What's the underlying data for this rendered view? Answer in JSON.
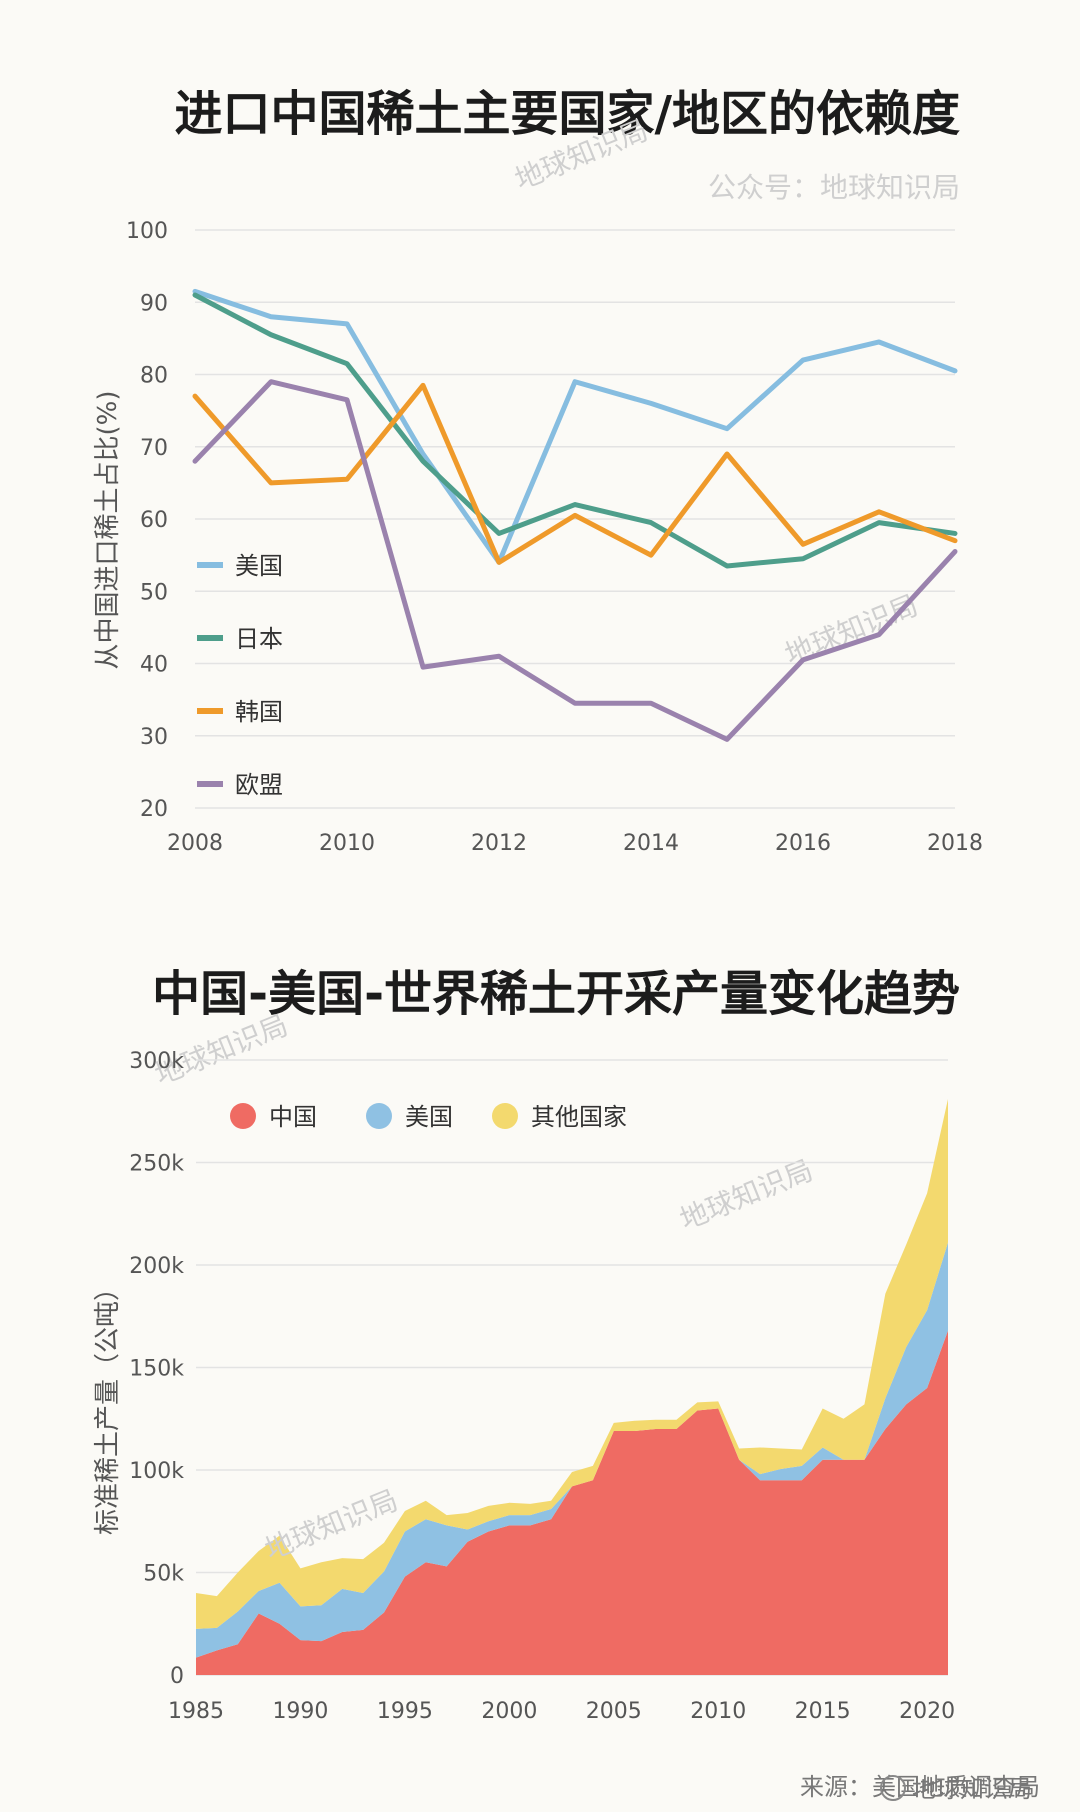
{
  "chart_data": [
    {
      "type": "line",
      "title": "进口中国稀土主要国家/地区的依赖度",
      "subtitle": "公众号：地球知识局",
      "ylabel": "从中国进口稀土占比(%)",
      "xlabel": "",
      "ylim": [
        20,
        100
      ],
      "xlim": [
        2008,
        2018
      ],
      "grid": true,
      "legend_position": "left",
      "y_ticks": [
        "20",
        "30",
        "40",
        "50",
        "60",
        "70",
        "80",
        "90",
        "100"
      ],
      "x_ticks": [
        "2008",
        "2010",
        "2012",
        "2014",
        "2016",
        "2018"
      ],
      "x": [
        2008,
        2009,
        2010,
        2011,
        2012,
        2013,
        2014,
        2015,
        2016,
        2017,
        2018
      ],
      "series": [
        {
          "name": "美国",
          "color": "#86bde0",
          "values": [
            91.5,
            88,
            87,
            69,
            54,
            79,
            76,
            72.5,
            82,
            84.5,
            80.5
          ]
        },
        {
          "name": "日本",
          "color": "#4e9e8b",
          "values": [
            91,
            85.5,
            81.5,
            68,
            58,
            62,
            59.5,
            53.5,
            54.5,
            59.5,
            58
          ]
        },
        {
          "name": "韩国",
          "color": "#ef9a2a",
          "values": [
            77,
            65,
            65.5,
            78.5,
            54,
            60.5,
            55,
            69,
            56.5,
            61,
            57
          ]
        },
        {
          "name": "欧盟",
          "color": "#9a82ad",
          "values": [
            68,
            79,
            76.5,
            39.5,
            41,
            34.5,
            34.5,
            29.5,
            40.5,
            44,
            55.5
          ]
        }
      ]
    },
    {
      "type": "area",
      "stacked": true,
      "title": "中国-美国-世界稀土开采产量变化趋势",
      "ylabel": "标准稀土产量（公吨）",
      "xlabel": "",
      "ylim": [
        0,
        300000
      ],
      "xlim": [
        1985,
        2021
      ],
      "grid": true,
      "legend_position": "top-left",
      "y_ticks": [
        "0",
        "50k",
        "100k",
        "150k",
        "200k",
        "250k",
        "300k"
      ],
      "x_ticks": [
        "1985",
        "1990",
        "1995",
        "2000",
        "2005",
        "2010",
        "2015",
        "2020"
      ],
      "x": [
        1985,
        1986,
        1987,
        1988,
        1989,
        1990,
        1991,
        1992,
        1993,
        1994,
        1995,
        1996,
        1997,
        1998,
        1999,
        2000,
        2001,
        2002,
        2003,
        2004,
        2005,
        2006,
        2007,
        2008,
        2009,
        2010,
        2011,
        2012,
        2013,
        2014,
        2015,
        2016,
        2017,
        2018,
        2019,
        2020,
        2021
      ],
      "series": [
        {
          "name": "中国",
          "color": "#ef6b63",
          "values": [
            8500,
            12000,
            15000,
            30000,
            25000,
            17000,
            16500,
            21000,
            22000,
            30500,
            48000,
            55000,
            53000,
            65000,
            70000,
            73000,
            73000,
            76000,
            92000,
            95000,
            119000,
            119000,
            120000,
            120000,
            129000,
            130000,
            105000,
            95000,
            95000,
            95000,
            105000,
            105000,
            105000,
            120000,
            132000,
            140000,
            168000
          ]
        },
        {
          "name": "美国",
          "color": "#8fc1e3",
          "values": [
            14000,
            11000,
            16000,
            11000,
            20000,
            16500,
            17500,
            21000,
            18000,
            20000,
            22000,
            21000,
            20000,
            6000,
            5000,
            5000,
            5000,
            5000,
            0,
            0,
            0,
            0,
            0,
            0,
            0,
            0,
            0,
            3000,
            5500,
            7000,
            6000,
            0,
            0,
            15000,
            28000,
            38000,
            43000
          ]
        },
        {
          "name": "其他国家",
          "color": "#f3d96e",
          "values": [
            17500,
            15500,
            19000,
            19500,
            23000,
            18500,
            21000,
            15000,
            16500,
            14000,
            10000,
            9000,
            5000,
            8000,
            7500,
            6000,
            5500,
            4000,
            7000,
            7000,
            4000,
            5000,
            4500,
            4500,
            4000,
            3500,
            5500,
            13000,
            10000,
            8000,
            19000,
            20000,
            27000,
            51000,
            50000,
            57000,
            70000
          ]
        }
      ]
    }
  ],
  "watermark": "地球知识局",
  "source": "来源：美国地质调查局",
  "brand": "地球知识局"
}
